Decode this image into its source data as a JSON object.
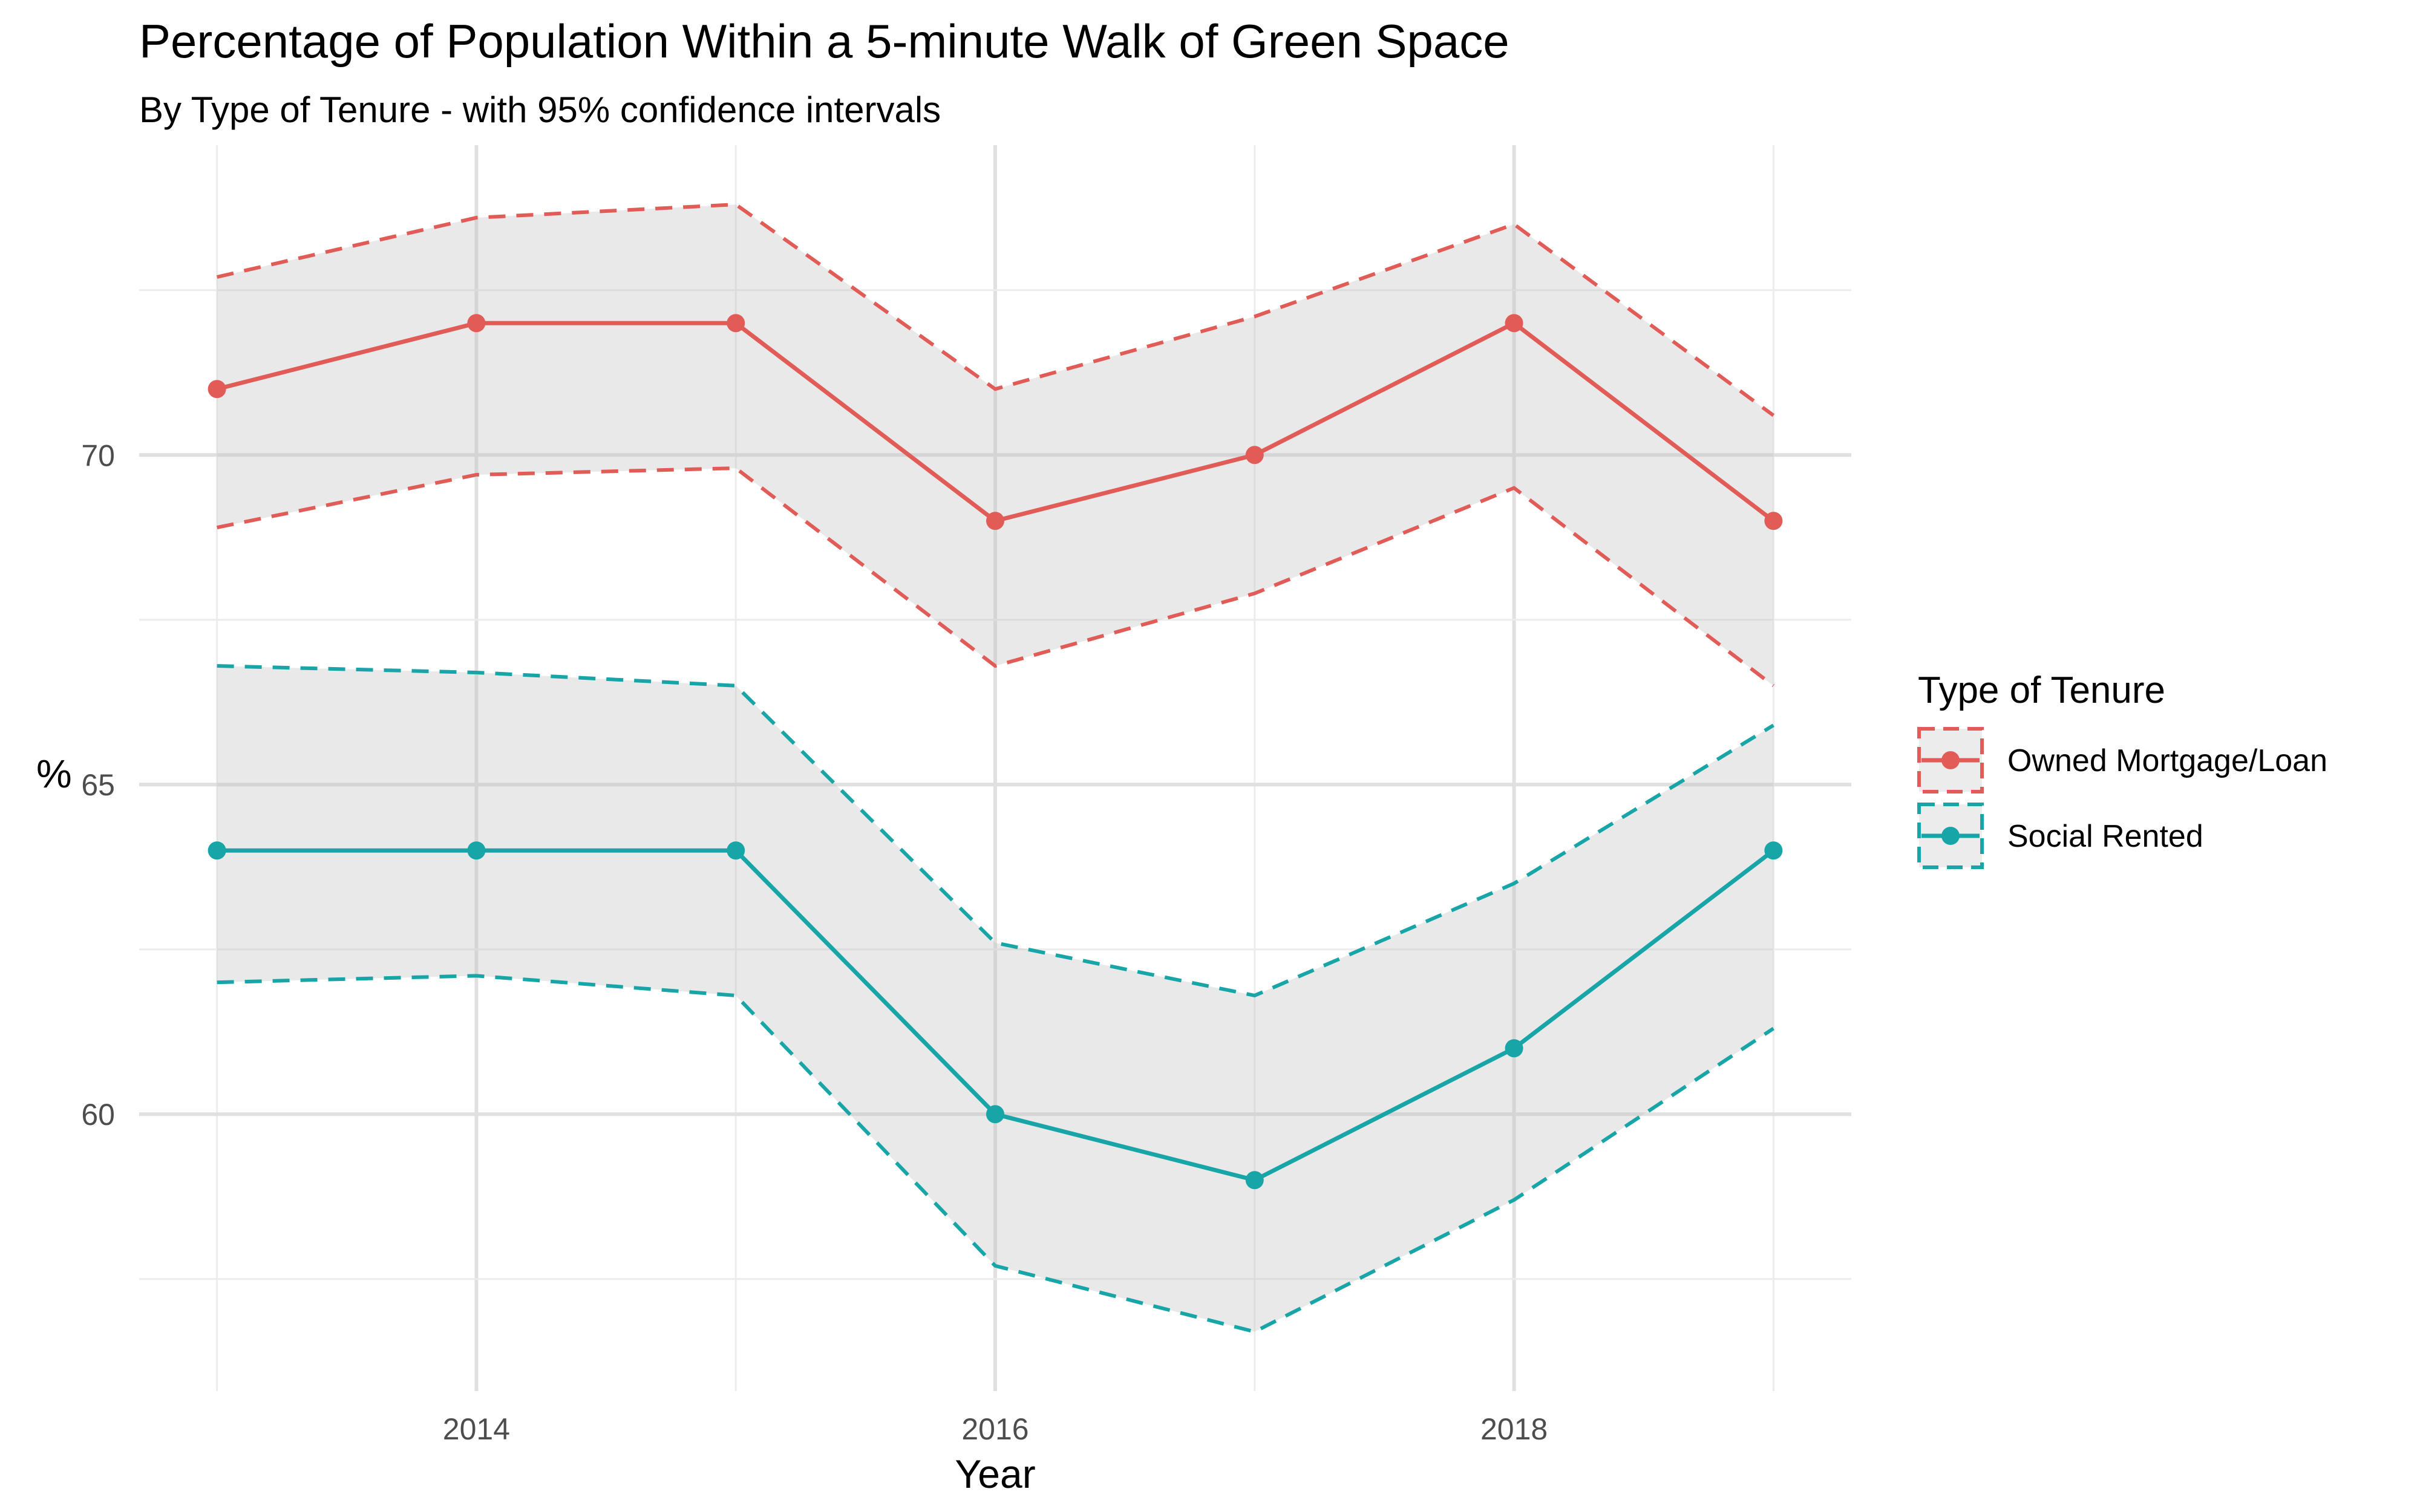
{
  "chart_data": {
    "type": "line",
    "title": "Percentage of Population Within a 5-minute Walk of Green Space",
    "subtitle": "By Type of Tenure - with 95% confidence intervals",
    "xlabel": "Year",
    "ylabel": "%",
    "x": [
      2013,
      2014,
      2015,
      2016,
      2017,
      2018,
      2019
    ],
    "xticks": [
      2014,
      2016,
      2018
    ],
    "yticks": [
      60,
      65,
      70
    ],
    "xlim": [
      2012.7,
      2019.3
    ],
    "ylim": [
      55.8,
      74.7
    ],
    "grid": true,
    "legend": {
      "title": "Type of Tenure",
      "position": "right"
    },
    "series": [
      {
        "name": "Owned Mortgage/Loan",
        "color": "#e15b57",
        "values": [
          71,
          72,
          72,
          69,
          70,
          72,
          69
        ],
        "lower": [
          68.9,
          69.7,
          69.8,
          66.8,
          67.9,
          69.5,
          66.5
        ],
        "upper": [
          72.7,
          73.6,
          73.8,
          71.0,
          72.1,
          73.5,
          70.6
        ]
      },
      {
        "name": "Social Rented",
        "color": "#18a5a7",
        "values": [
          64,
          64,
          64,
          60,
          59,
          61,
          64
        ],
        "lower": [
          62.0,
          62.1,
          61.8,
          57.7,
          56.7,
          58.7,
          61.3
        ],
        "upper": [
          66.8,
          66.7,
          66.5,
          62.6,
          61.8,
          63.5,
          65.9
        ]
      }
    ]
  }
}
